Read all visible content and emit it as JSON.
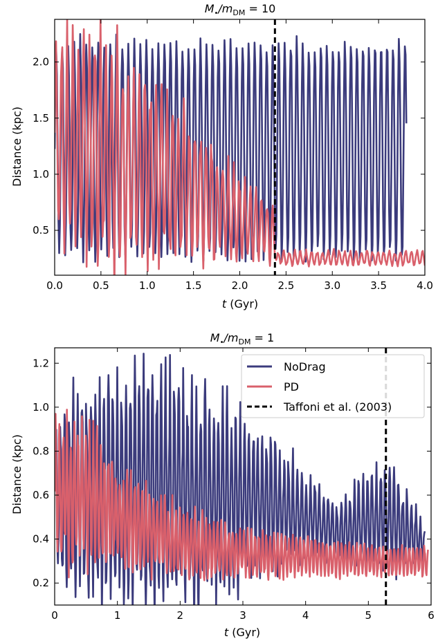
{
  "colors": {
    "nodrag": "#3b3b7c",
    "pd": "#d9606b",
    "ref": "#000000"
  },
  "legend": [
    {
      "key": "nodrag",
      "label": "NoDrag"
    },
    {
      "key": "pd",
      "label": "PD"
    },
    {
      "key": "ref",
      "label": "Taffoni et al. (2003)"
    }
  ],
  "chart_data": [
    {
      "type": "line",
      "title_pre": "M",
      "title_sub1": "•",
      "title_mid": "/m",
      "title_sub2": "DM",
      "title_post": " = 10",
      "xlabel_italic": "t",
      "xlabel_rest": " (Gyr)",
      "ylabel": "Distance (kpc)",
      "xlim": [
        0,
        4.0
      ],
      "ylim": [
        0.1,
        2.38
      ],
      "xticks": [
        "0.0",
        "0.5",
        "1.0",
        "1.5",
        "2.0",
        "2.5",
        "3.0",
        "3.5",
        "4.0"
      ],
      "yticks": [
        "0.5",
        "1.0",
        "1.5",
        "2.0"
      ],
      "vline_x": 2.38,
      "legend": false,
      "series": [
        {
          "key": "nodrag",
          "t_end": 3.8,
          "period": 0.065,
          "max": 2.25,
          "min": 0.2,
          "amp_envelope": [
            [
              0,
              1.0
            ],
            [
              3.8,
              1.0
            ]
          ]
        },
        {
          "key": "pd",
          "t_end": 4.0,
          "period": 0.06,
          "centers": [
            [
              0,
              1.3
            ],
            [
              0.5,
              1.2
            ],
            [
              1.0,
              1.0
            ],
            [
              1.5,
              0.85
            ],
            [
              2.0,
              0.6
            ],
            [
              2.38,
              0.45
            ],
            [
              2.4,
              0.25
            ],
            [
              4.0,
              0.25
            ]
          ],
          "amps": [
            [
              0,
              0.85
            ],
            [
              0.5,
              0.9
            ],
            [
              1.0,
              0.75
            ],
            [
              1.5,
              0.55
            ],
            [
              2.0,
              0.35
            ],
            [
              2.38,
              0.2
            ],
            [
              2.4,
              0.06
            ],
            [
              4.0,
              0.06
            ]
          ]
        }
      ]
    },
    {
      "type": "line",
      "title_pre": "M",
      "title_sub1": "•",
      "title_mid": "/m",
      "title_sub2": "DM",
      "title_post": " = 1",
      "xlabel_italic": "t",
      "xlabel_rest": " (Gyr)",
      "ylabel": "Distance (kpc)",
      "xlim": [
        0,
        6
      ],
      "ylim": [
        0.1,
        1.27
      ],
      "xticks": [
        "0",
        "1",
        "2",
        "3",
        "4",
        "5",
        "6"
      ],
      "yticks": [
        "0.2",
        "0.4",
        "0.6",
        "0.8",
        "1.0",
        "1.2"
      ],
      "vline_x": 5.28,
      "legend": true,
      "series": [
        {
          "key": "nodrag",
          "t_end": 5.9,
          "period": 0.07,
          "centers": [
            [
              0,
              0.6
            ],
            [
              1.0,
              0.65
            ],
            [
              2.0,
              0.62
            ],
            [
              3.0,
              0.6
            ],
            [
              4.0,
              0.5
            ],
            [
              4.5,
              0.42
            ],
            [
              5.0,
              0.48
            ],
            [
              5.3,
              0.5
            ],
            [
              5.9,
              0.38
            ]
          ],
          "amps": [
            [
              0,
              0.4
            ],
            [
              1.0,
              0.45
            ],
            [
              1.5,
              0.5
            ],
            [
              2.0,
              0.45
            ],
            [
              3.0,
              0.35
            ],
            [
              4.0,
              0.18
            ],
            [
              4.5,
              0.12
            ],
            [
              5.0,
              0.2
            ],
            [
              5.3,
              0.25
            ],
            [
              5.9,
              0.08
            ]
          ]
        },
        {
          "key": "pd",
          "t_end": 5.95,
          "period": 0.06,
          "centers": [
            [
              0,
              0.6
            ],
            [
              0.5,
              0.6
            ],
            [
              1.0,
              0.5
            ],
            [
              2.0,
              0.38
            ],
            [
              3.0,
              0.33
            ],
            [
              4.0,
              0.32
            ],
            [
              5.0,
              0.3
            ],
            [
              5.95,
              0.3
            ]
          ],
          "amps": [
            [
              0,
              0.3
            ],
            [
              0.5,
              0.3
            ],
            [
              1.0,
              0.2
            ],
            [
              2.0,
              0.14
            ],
            [
              3.0,
              0.1
            ],
            [
              4.0,
              0.08
            ],
            [
              5.0,
              0.06
            ],
            [
              5.95,
              0.06
            ]
          ]
        }
      ]
    }
  ]
}
